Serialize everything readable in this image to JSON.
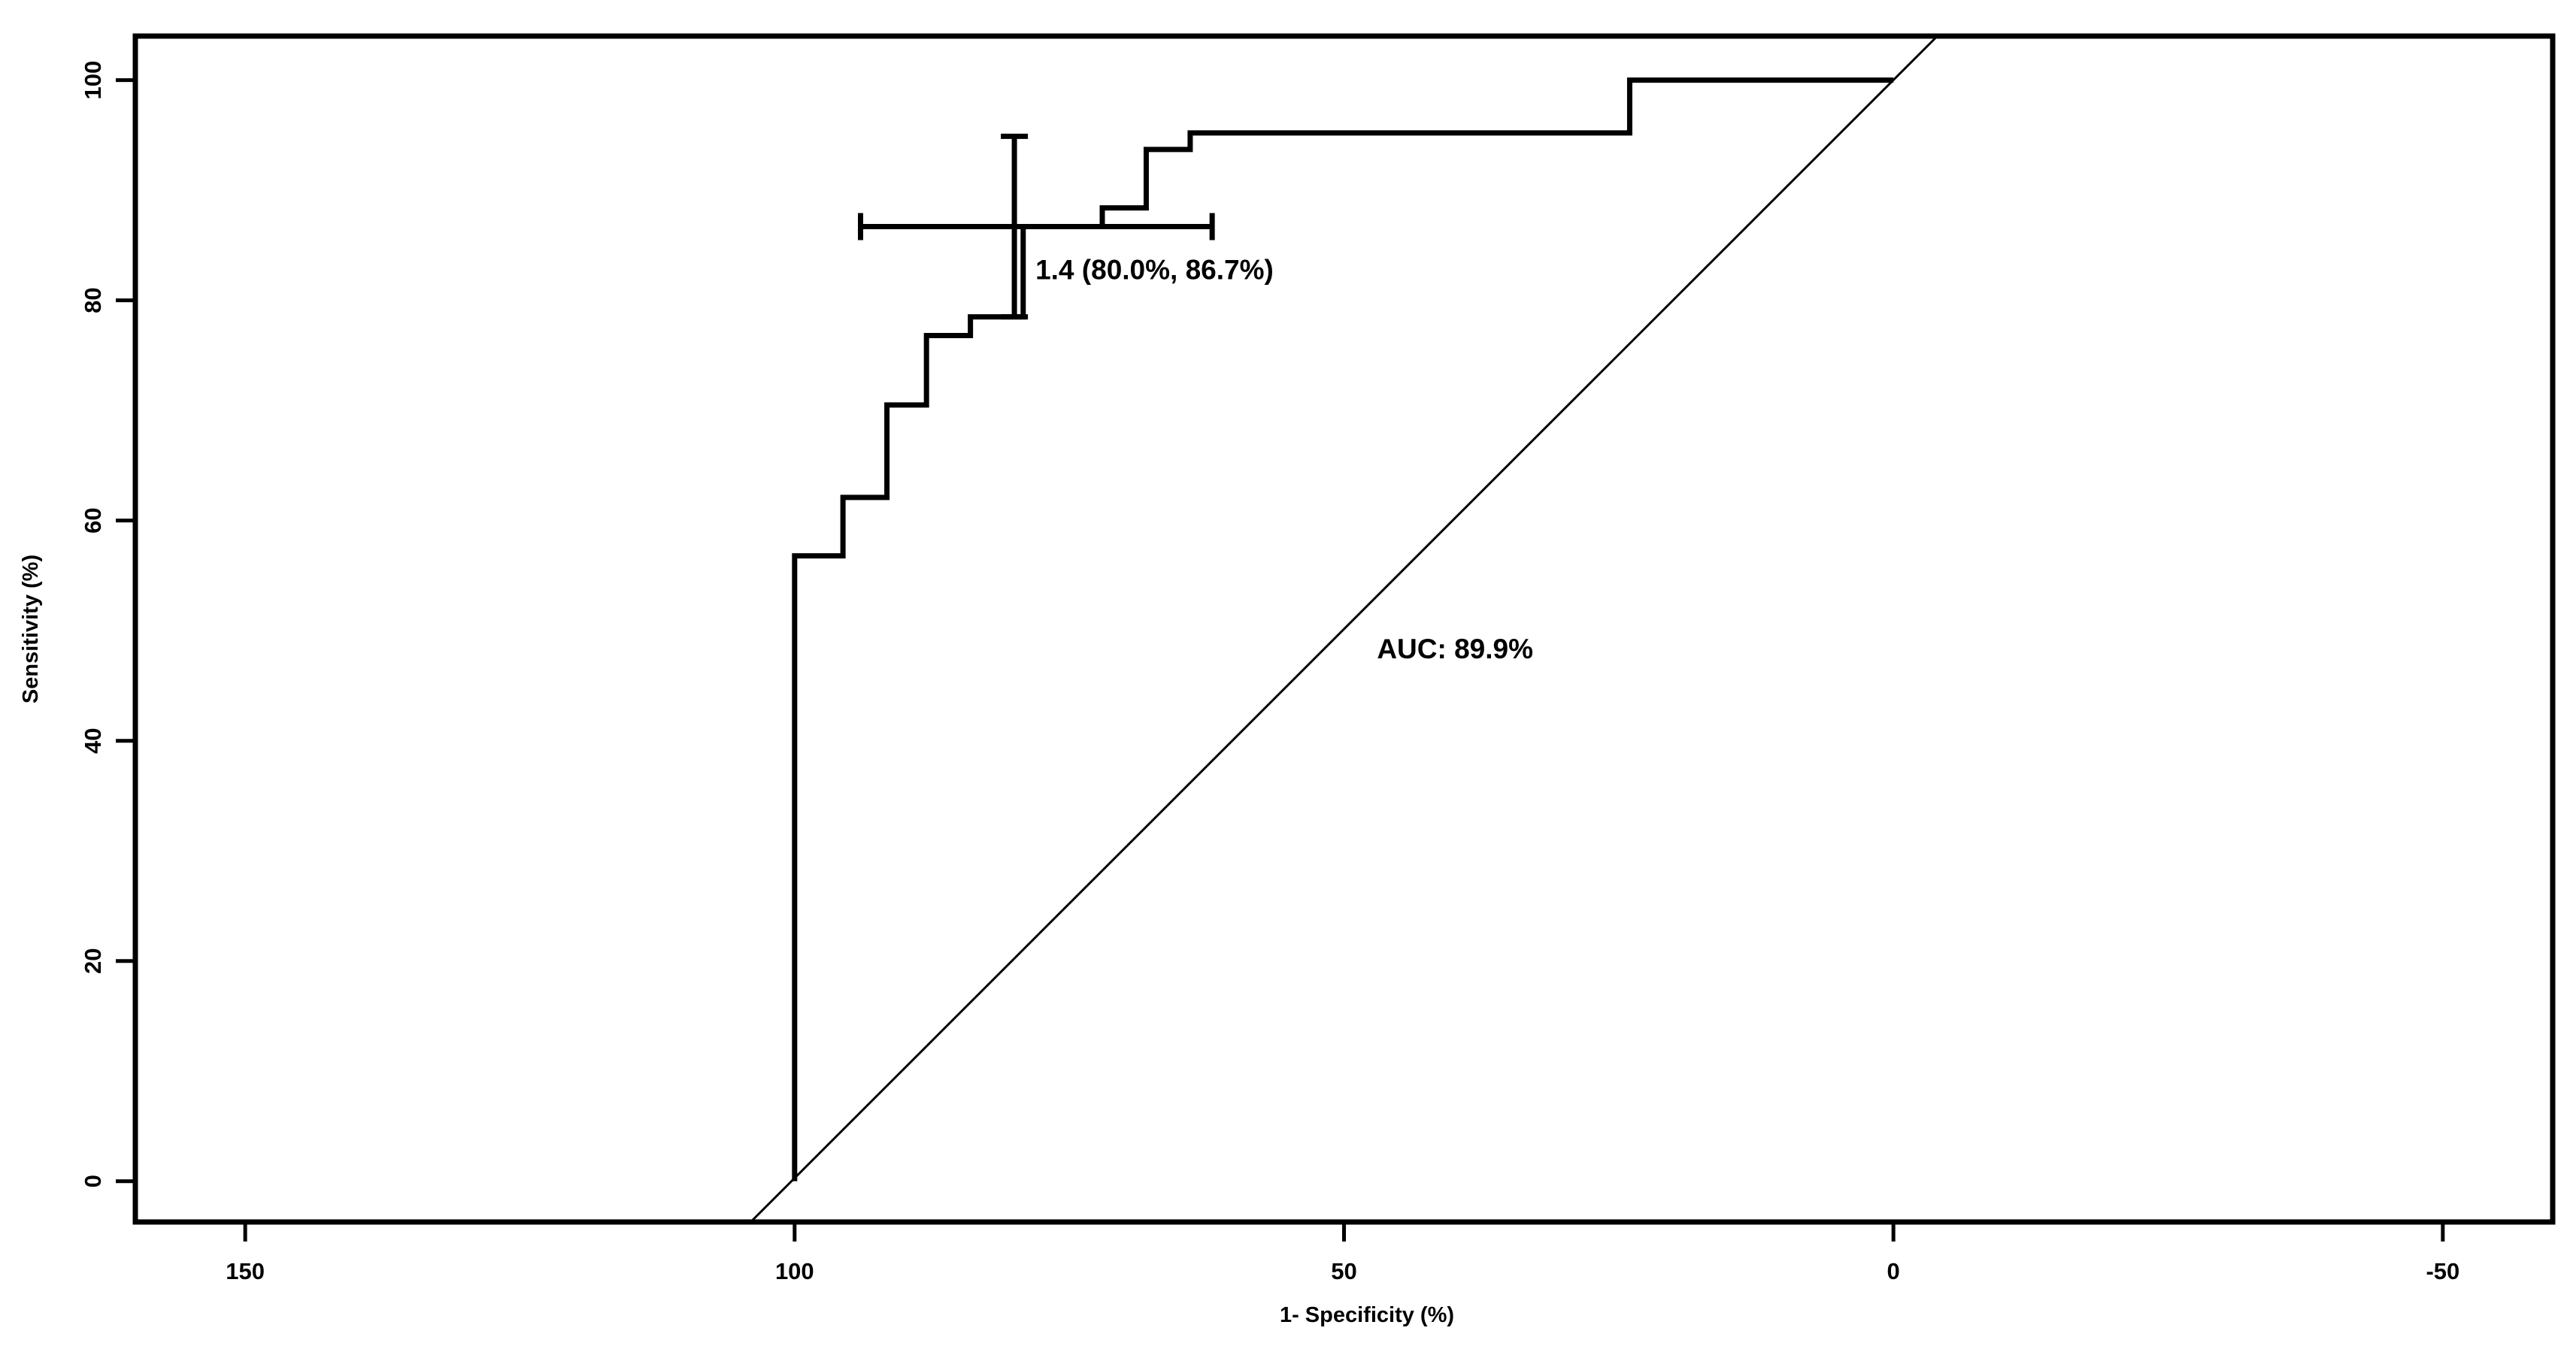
{
  "chart_data": {
    "type": "line",
    "title": "",
    "xlabel": "1- Specificity (%)",
    "ylabel": "Sensitivity (%)",
    "xlim": [
      160,
      -60
    ],
    "ylim": [
      -3.7,
      104
    ],
    "x_ticks": [
      150,
      100,
      50,
      0,
      -50
    ],
    "x_tick_labels": [
      "150",
      "100",
      "50",
      "0",
      "-50"
    ],
    "y_ticks": [
      0,
      20,
      40,
      60,
      80,
      100
    ],
    "y_tick_labels": [
      "0",
      "20",
      "40",
      "60",
      "80",
      "100"
    ],
    "grid": false,
    "legend": "none",
    "series": [
      {
        "x": [
          100,
          100,
          95.6,
          95.6,
          91.6,
          91.6,
          88,
          88,
          84,
          84,
          79.2,
          79.2,
          72,
          72,
          68,
          68,
          64,
          64,
          24,
          24,
          0
        ],
        "y": [
          0,
          56.8,
          56.8,
          62.1,
          62.1,
          70.5,
          70.5,
          76.8,
          76.8,
          78.5,
          78.5,
          86.7,
          86.7,
          88.4,
          88.4,
          93.7,
          93.7,
          95.2,
          95.2,
          100,
          100
        ],
        "color": "#000000"
      }
    ],
    "reference_line": {
      "x": [
        104,
        -4
      ],
      "y": [
        -3.7,
        104
      ],
      "color": "#000000"
    },
    "threshold_marker": {
      "x": 80.0,
      "y": 86.7,
      "x_ci": [
        94.0,
        62.0
      ],
      "y_ci": [
        78.5,
        94.9
      ],
      "label": "1.4 (80.0%, 86.7%)"
    },
    "annotations": [
      {
        "text": "AUC: 89.9%",
        "x": 47.0,
        "y": 47.5
      }
    ]
  }
}
